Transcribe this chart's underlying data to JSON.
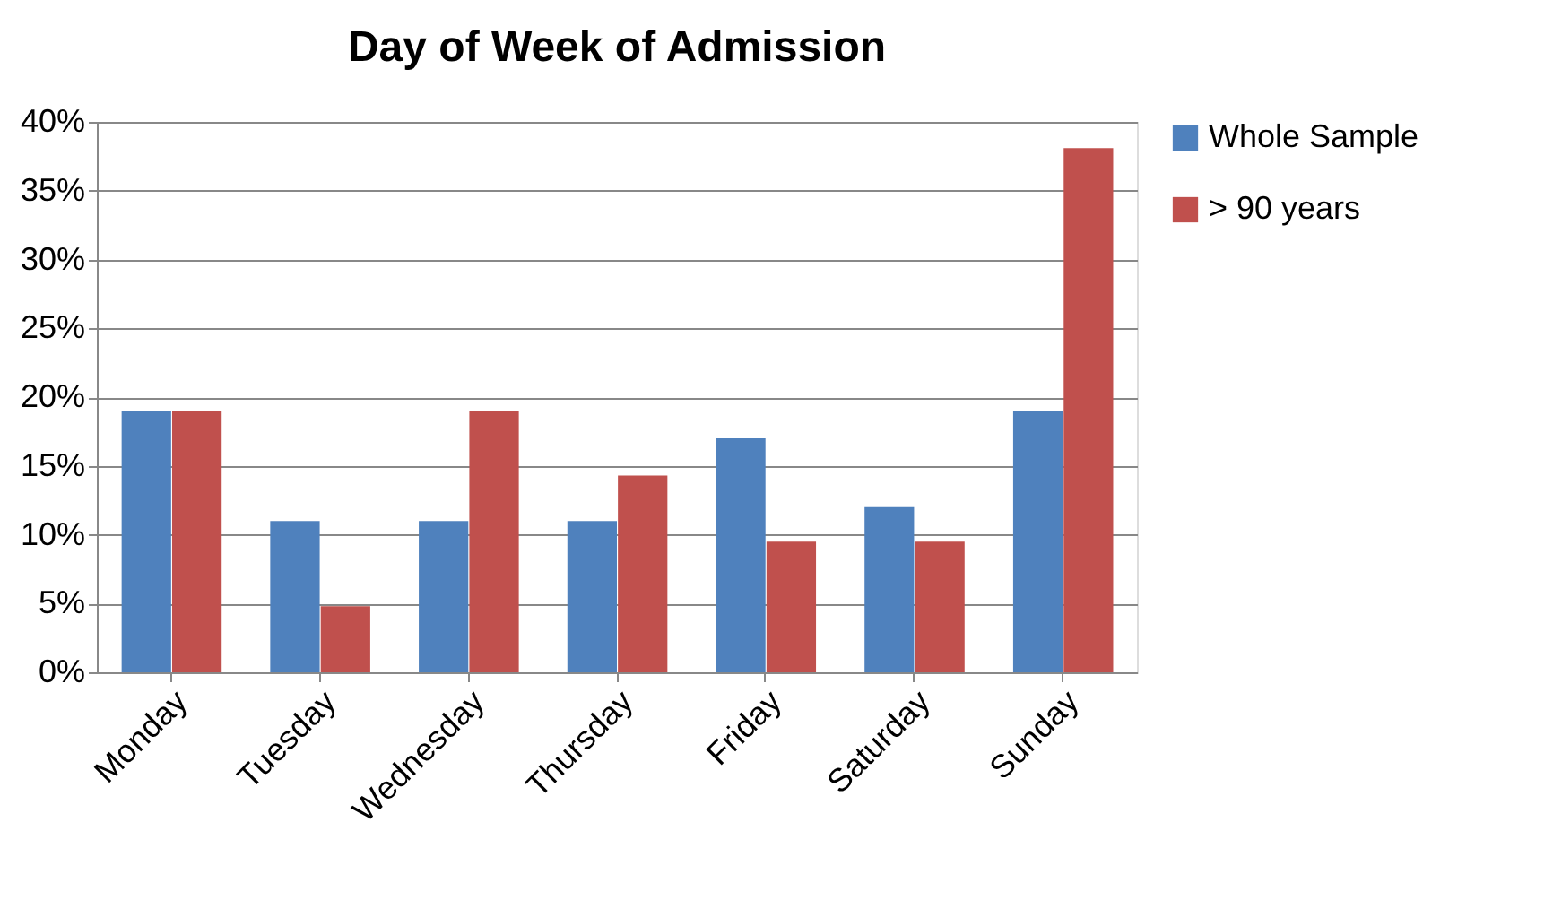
{
  "chart_data": {
    "type": "bar",
    "title": "Day of Week of Admission",
    "categories": [
      "Monday",
      "Tuesday",
      "Wednesday",
      "Thursday",
      "Friday",
      "Saturday",
      "Sunday"
    ],
    "series": [
      {
        "name": "Whole Sample",
        "color": "#4f81bd",
        "values": [
          19,
          11,
          11,
          11,
          17,
          12,
          19
        ]
      },
      {
        "name": "> 90 years",
        "color": "#c0504d",
        "values": [
          19,
          4.8,
          19,
          14.3,
          9.5,
          9.5,
          38.1
        ]
      }
    ],
    "ylim": [
      0,
      40
    ],
    "yticks": [
      {
        "value": 0,
        "label": "0%"
      },
      {
        "value": 5,
        "label": "5%"
      },
      {
        "value": 10,
        "label": "10%"
      },
      {
        "value": 15,
        "label": "15%"
      },
      {
        "value": 20,
        "label": "20%"
      },
      {
        "value": 25,
        "label": "25%"
      },
      {
        "value": 30,
        "label": "30%"
      },
      {
        "value": 35,
        "label": "35%"
      },
      {
        "value": 40,
        "label": "40%"
      }
    ],
    "grid": "y",
    "legend": "right"
  }
}
